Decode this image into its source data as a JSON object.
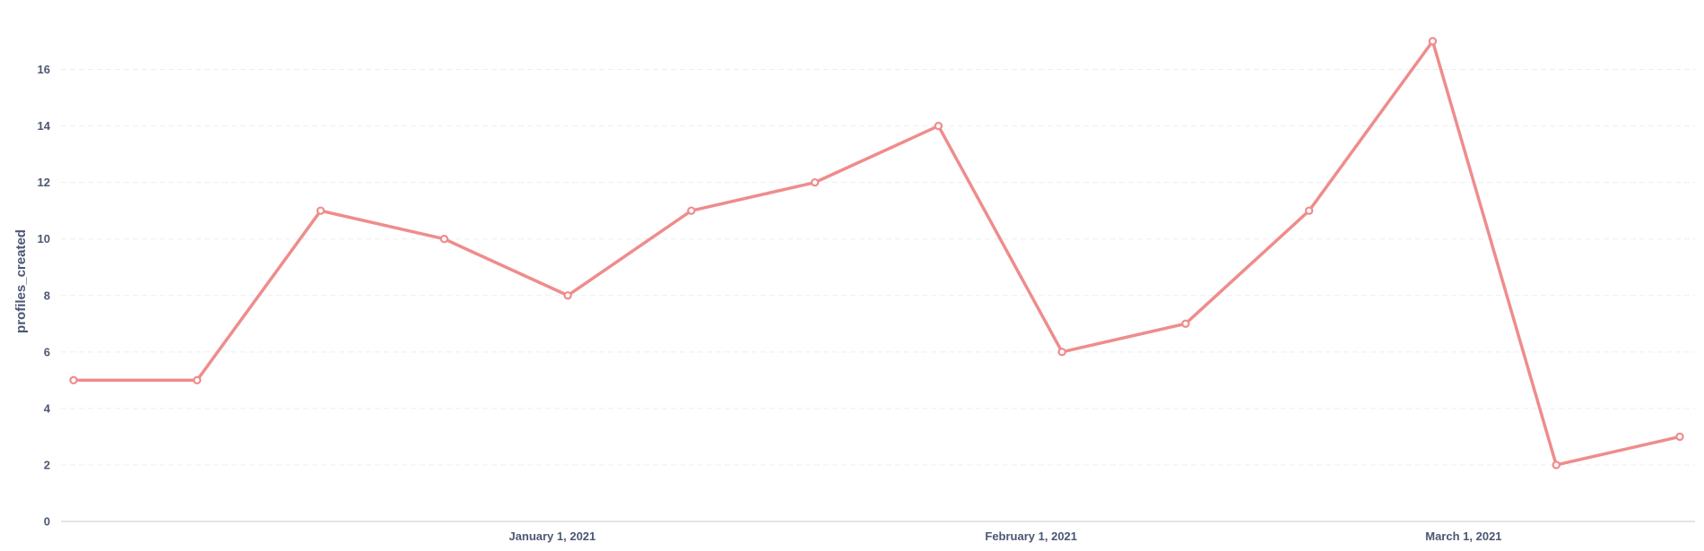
{
  "chart_data": {
    "type": "line",
    "ylabel": "profiles_created",
    "xlabel": "",
    "ylim": [
      0,
      17
    ],
    "y_ticks": [
      0,
      2,
      4,
      6,
      8,
      10,
      12,
      14,
      16
    ],
    "x_tick_labels": [
      {
        "date": "2021-01-01",
        "label": "January 1, 2021"
      },
      {
        "date": "2021-02-01",
        "label": "February 1, 2021"
      },
      {
        "date": "2021-03-01",
        "label": "March 1, 2021"
      }
    ],
    "grid": true,
    "colors": {
      "series": "#ef8c8c",
      "text": "#4c5773",
      "grid": "#ebedf0",
      "axis": "#c7cbd1"
    },
    "series": [
      {
        "x": [
          "2020-12-01",
          "2020-12-09",
          "2020-12-17",
          "2020-12-25",
          "2021-01-02",
          "2021-01-10",
          "2021-01-18",
          "2021-01-26",
          "2021-02-03",
          "2021-02-11",
          "2021-02-19",
          "2021-02-27",
          "2021-03-07",
          "2021-03-15"
        ],
        "values": [
          5,
          5,
          11,
          10,
          8,
          11,
          12,
          14,
          6,
          7,
          11,
          17,
          2,
          3
        ]
      }
    ]
  }
}
